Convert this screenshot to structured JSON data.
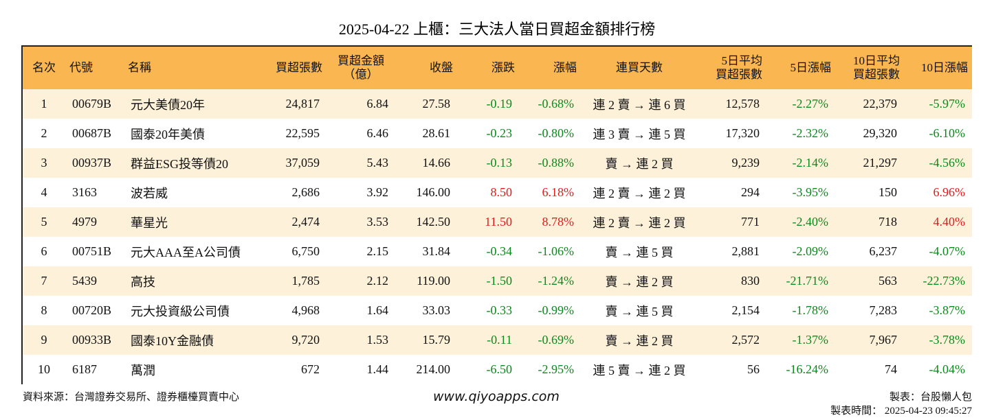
{
  "title": "2025-04-22 上櫃：三大法人當日買超金額排行榜",
  "headers": {
    "rank": "名次",
    "code": "代號",
    "name": "名稱",
    "net_buy_lots": "買超張數",
    "net_buy_amount_1": "買超金額",
    "net_buy_amount_2": "（億）",
    "close": "收盤",
    "change": "漲跌",
    "change_pct": "漲幅",
    "streak": "連買天數",
    "avg5_1": "5日平均",
    "avg5_2": "買超張數",
    "chg5": "5日漲幅",
    "avg10_1": "10日平均",
    "avg10_2": "買超張數",
    "chg10": "10日漲幅"
  },
  "rows": [
    {
      "rank": "1",
      "code": "00679B",
      "name": "元大美債20年",
      "lots": "24,817",
      "amount": "6.84",
      "close": "27.58",
      "change": "-0.19",
      "change_pct": "-0.68%",
      "streak": "連 2 賣 → 連 6 買",
      "avg5": "12,578",
      "chg5": "-2.27%",
      "avg10": "22,379",
      "chg10": "-5.97%"
    },
    {
      "rank": "2",
      "code": "00687B",
      "name": "國泰20年美債",
      "lots": "22,595",
      "amount": "6.46",
      "close": "28.61",
      "change": "-0.23",
      "change_pct": "-0.80%",
      "streak": "連 3 賣 → 連 5 買",
      "avg5": "17,320",
      "chg5": "-2.32%",
      "avg10": "29,320",
      "chg10": "-6.10%"
    },
    {
      "rank": "3",
      "code": "00937B",
      "name": "群益ESG投等債20",
      "lots": "37,059",
      "amount": "5.43",
      "close": "14.66",
      "change": "-0.13",
      "change_pct": "-0.88%",
      "streak": "賣 → 連 2 買",
      "avg5": "9,239",
      "chg5": "-2.14%",
      "avg10": "21,297",
      "chg10": "-4.56%"
    },
    {
      "rank": "4",
      "code": "3163",
      "name": "波若威",
      "lots": "2,686",
      "amount": "3.92",
      "close": "146.00",
      "change": "8.50",
      "change_pct": "6.18%",
      "streak": "連 2 賣 → 連 2 買",
      "avg5": "294",
      "chg5": "-3.95%",
      "avg10": "150",
      "chg10": "6.96%"
    },
    {
      "rank": "5",
      "code": "4979",
      "name": "華星光",
      "lots": "2,474",
      "amount": "3.53",
      "close": "142.50",
      "change": "11.50",
      "change_pct": "8.78%",
      "streak": "連 2 賣 → 連 2 買",
      "avg5": "771",
      "chg5": "-2.40%",
      "avg10": "718",
      "chg10": "4.40%"
    },
    {
      "rank": "6",
      "code": "00751B",
      "name": "元大AAA至A公司債",
      "lots": "6,750",
      "amount": "2.15",
      "close": "31.84",
      "change": "-0.34",
      "change_pct": "-1.06%",
      "streak": "賣 → 連 5 買",
      "avg5": "2,881",
      "chg5": "-2.09%",
      "avg10": "6,237",
      "chg10": "-4.07%"
    },
    {
      "rank": "7",
      "code": "5439",
      "name": "高技",
      "lots": "1,785",
      "amount": "2.12",
      "close": "119.00",
      "change": "-1.50",
      "change_pct": "-1.24%",
      "streak": "賣 → 連 2 買",
      "avg5": "830",
      "chg5": "-21.71%",
      "avg10": "563",
      "chg10": "-22.73%"
    },
    {
      "rank": "8",
      "code": "00720B",
      "name": "元大投資級公司債",
      "lots": "4,968",
      "amount": "1.64",
      "close": "33.03",
      "change": "-0.33",
      "change_pct": "-0.99%",
      "streak": "賣 → 連 5 買",
      "avg5": "2,154",
      "chg5": "-1.78%",
      "avg10": "7,283",
      "chg10": "-3.87%"
    },
    {
      "rank": "9",
      "code": "00933B",
      "name": "國泰10Y金融債",
      "lots": "9,720",
      "amount": "1.53",
      "close": "15.79",
      "change": "-0.11",
      "change_pct": "-0.69%",
      "streak": "賣 → 連 2 買",
      "avg5": "2,572",
      "chg5": "-1.37%",
      "avg10": "7,967",
      "chg10": "-3.78%"
    },
    {
      "rank": "10",
      "code": "6187",
      "name": "萬潤",
      "lots": "672",
      "amount": "1.44",
      "close": "214.00",
      "change": "-6.50",
      "change_pct": "-2.95%",
      "streak": "連 5 賣 → 連 2 買",
      "avg5": "56",
      "chg5": "-16.24%",
      "avg10": "74",
      "chg10": "-4.04%"
    }
  ],
  "colors": {
    "header_bg": "#f9b651",
    "stripe_bg": "#fdf1d9",
    "negative": "#0a8a1a",
    "positive": "#e01b1b"
  },
  "footer": {
    "source": "資料來源：台灣證券交易所、證券櫃檯買賣中心",
    "website": "www.qiyoapps.com",
    "author": "製表：台股懶人包",
    "time": "製表時間： 2025-04-23 09:45:27"
  }
}
